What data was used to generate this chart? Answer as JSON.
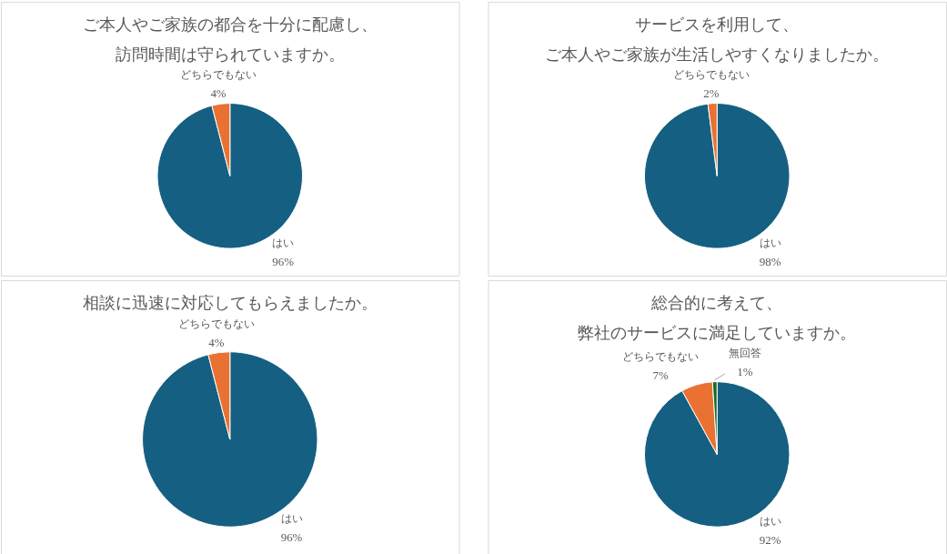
{
  "chart_data": [
    {
      "type": "pie",
      "title": "ご本人やご家族の都合を十分に配慮し、訪問時間は守られていますか。",
      "categories": [
        "はい",
        "どちらでもない"
      ],
      "values": [
        96,
        4
      ],
      "colors": [
        "#156082",
        "#e97132"
      ],
      "value_labels": [
        "96%",
        "4%"
      ]
    },
    {
      "type": "pie",
      "title": "サービスを利用して、ご本人やご家族が生活しやすくなりましたか。",
      "categories": [
        "はい",
        "どちらでもない"
      ],
      "values": [
        98,
        2
      ],
      "colors": [
        "#156082",
        "#e97132"
      ],
      "value_labels": [
        "98%",
        "2%"
      ]
    },
    {
      "type": "pie",
      "title": "相談に迅速に対応してもらえましたか。",
      "categories": [
        "はい",
        "どちらでもない"
      ],
      "values": [
        96,
        4
      ],
      "colors": [
        "#156082",
        "#e97132"
      ],
      "value_labels": [
        "96%",
        "4%"
      ]
    },
    {
      "type": "pie",
      "title": "総合的に考えて、弊社のサービスに満足していますか。",
      "categories": [
        "はい",
        "どちらでもない",
        "無回答"
      ],
      "values": [
        92,
        7,
        1
      ],
      "colors": [
        "#156082",
        "#e97132",
        "#196b24"
      ],
      "value_labels": [
        "92%",
        "7%",
        "1%"
      ]
    }
  ]
}
